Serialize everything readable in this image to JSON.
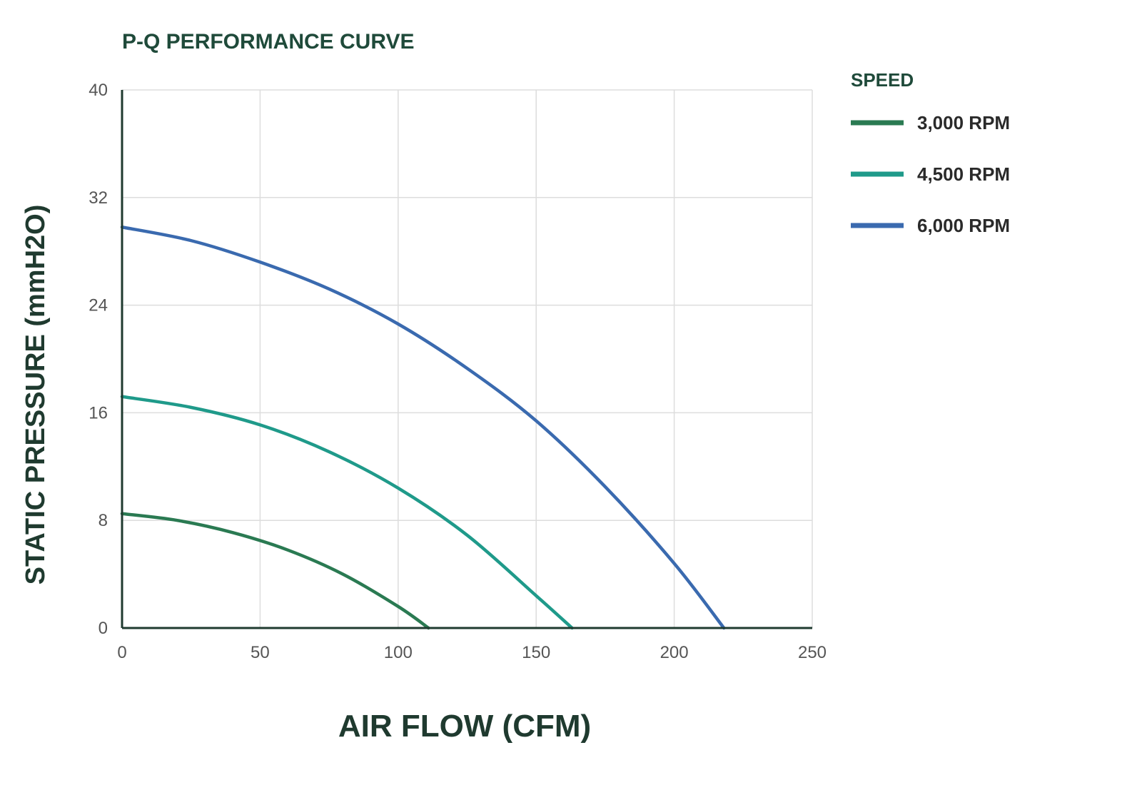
{
  "chart_data": {
    "type": "line",
    "title": "P-Q PERFORMANCE CURVE",
    "xlabel": "AIR FLOW (CFM)",
    "ylabel": "STATIC PRESSURE (mmH2O)",
    "xlim": [
      0,
      250
    ],
    "ylim": [
      0,
      40
    ],
    "xticks": [
      "0",
      "50",
      "100",
      "150",
      "200",
      "250"
    ],
    "yticks": [
      "0",
      "8",
      "16",
      "24",
      "32",
      "40"
    ],
    "grid": true,
    "legend": {
      "title": "SPEED",
      "placement": "right"
    },
    "series": [
      {
        "name": "3,000 RPM",
        "color": "#2a7a52",
        "x": [
          0,
          20,
          40,
          60,
          80,
          100,
          111
        ],
        "y": [
          8.5,
          8.0,
          7.1,
          5.8,
          4.0,
          1.6,
          0
        ]
      },
      {
        "name": "4,500 RPM",
        "color": "#1f9a8a",
        "x": [
          0,
          25,
          50,
          75,
          100,
          125,
          150,
          163
        ],
        "y": [
          17.2,
          16.4,
          15.1,
          13.1,
          10.4,
          6.9,
          2.4,
          0
        ]
      },
      {
        "name": "6,000 RPM",
        "color": "#3a6aaf",
        "x": [
          0,
          25,
          50,
          75,
          100,
          125,
          150,
          175,
          200,
          218
        ],
        "y": [
          29.8,
          28.8,
          27.2,
          25.2,
          22.6,
          19.3,
          15.4,
          10.5,
          4.8,
          0
        ]
      }
    ]
  }
}
